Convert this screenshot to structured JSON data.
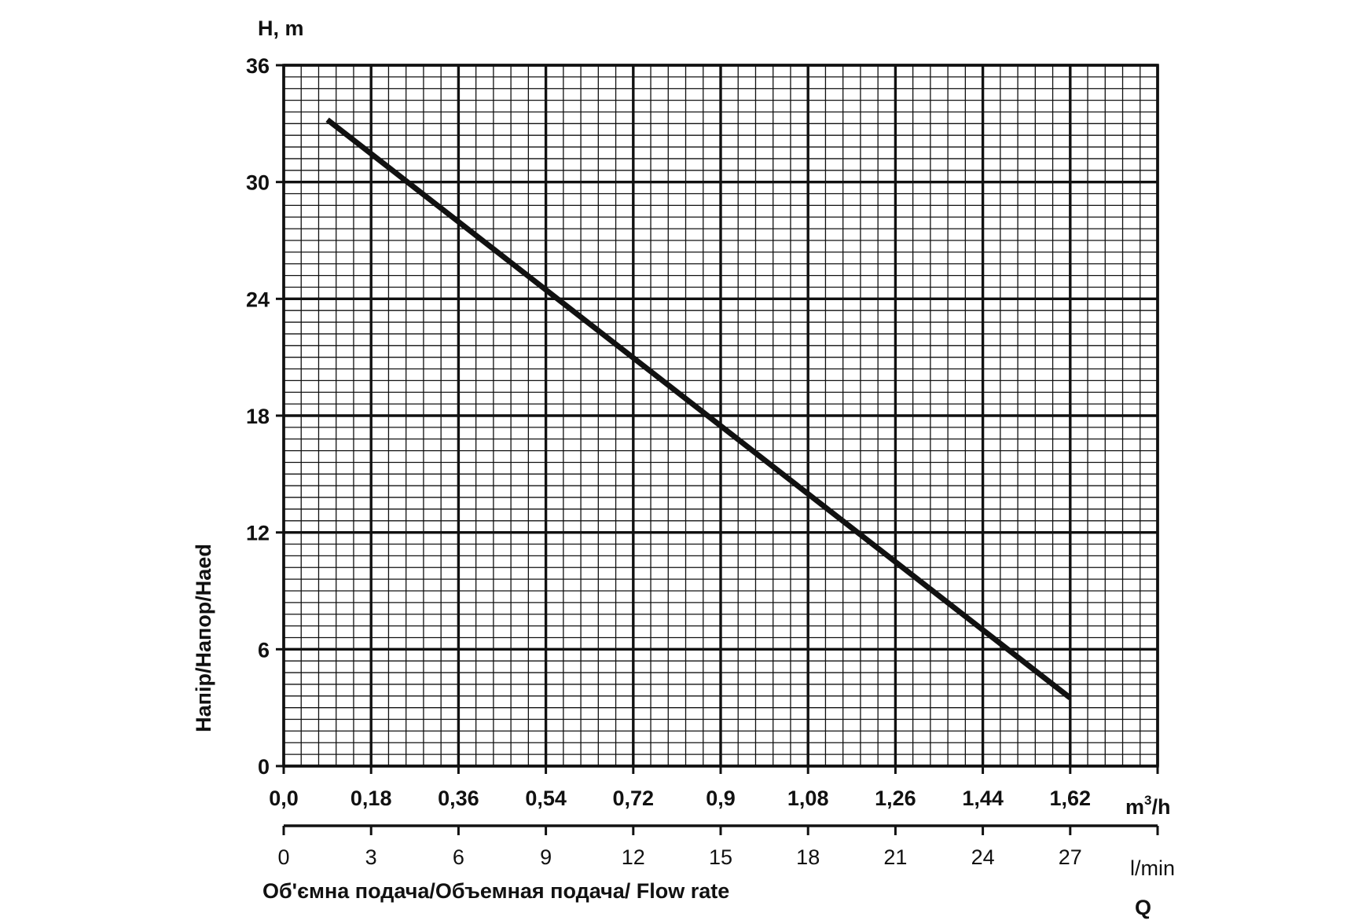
{
  "chart_data": {
    "type": "line",
    "ylabel_top": "H, m",
    "ylabel_side": "Напір/Напор/Haed",
    "xlabel_bottom": "Об'ємна подача/Объемная подача/ Flow rate",
    "q_label": "Q",
    "x_m3h": {
      "unit_base": "m",
      "unit_exp": "3",
      "unit_rest": "/h",
      "ticks": [
        "0,0",
        "0,18",
        "0,36",
        "0,54",
        "0,72",
        "0,9",
        "1,08",
        "1,26",
        "1,44",
        "1,62"
      ],
      "tick_values": [
        0,
        0.18,
        0.36,
        0.54,
        0.72,
        0.9,
        1.08,
        1.26,
        1.44,
        1.62
      ],
      "range": [
        0,
        1.8
      ]
    },
    "x_lmin": {
      "unit": "l/min",
      "ticks": [
        "0",
        "3",
        "6",
        "9",
        "12",
        "15",
        "18",
        "21",
        "24",
        "27"
      ],
      "tick_values": [
        0,
        3,
        6,
        9,
        12,
        15,
        18,
        21,
        24,
        27
      ],
      "range": [
        0,
        30
      ]
    },
    "y": {
      "ticks": [
        "0",
        "6",
        "12",
        "18",
        "24",
        "30",
        "36"
      ],
      "tick_values": [
        0,
        6,
        12,
        18,
        24,
        30,
        36
      ],
      "range": [
        0,
        36
      ]
    },
    "grid": true,
    "series": [
      {
        "x_m3h": [
          0.09,
          1.62
        ],
        "y_m": [
          33.2,
          3.5
        ]
      }
    ],
    "line_color": "#111111",
    "grid_color": "#111111"
  }
}
